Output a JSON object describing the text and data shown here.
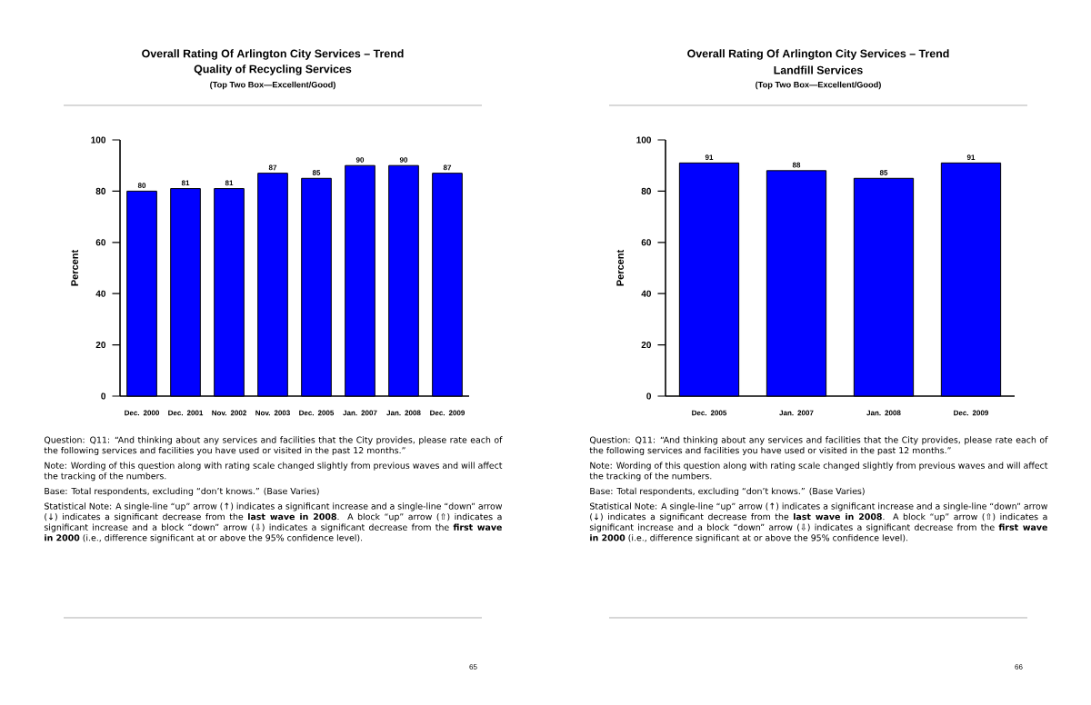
{
  "chart_data": [
    {
      "type": "bar",
      "title": "Overall Rating Of Arlington City Services – Trend",
      "subtitle": "Quality of Recycling Services",
      "ylabel": "Percent",
      "categories": [
        "Dec. 2000",
        "Dec. 2001",
        "Nov. 2002",
        "Nov. 2003",
        "Dec. 2005",
        "Jan. 2007",
        "Jan. 2008",
        "Dec. 2009"
      ],
      "values": [
        80,
        81,
        81,
        87,
        85,
        90,
        90,
        87
      ],
      "color": "#0000ff",
      "ylim": [
        0,
        100
      ],
      "yticks": [
        0,
        20,
        40,
        60,
        80,
        100
      ],
      "data_labels": true,
      "annotations": [
        "(Top Two Box—Excellent/Good)",
        "Question:  Q11: “And thinking about any services and facilities that the City provides, please rate each of the following services and facilities you have used or visited in the past 12 months.”",
        "Note: Wording of this question along with rating scale changed slightly from previous waves and will affect the tracking of the numbers.",
        "Base: Total respondents, excluding “don’t knows.” (Base Varies)",
        "Statistical Note:  A single-line “up” arrow (↑) indicates a significant increase and a single-line “down” arrow (↓) indicates a significant decrease from the **last wave in 2008**.  A block “up” arrow (⇧) indicates a significant increase and a block “down” arrow (⇩) indicates a significant decrease from the **first wave in 2000** (i.e., difference significant at or above the 95% confidence level).",
        "65"
      ]
    },
    {
      "type": "bar",
      "title": "Overall Rating Of Arlington City Services – Trend",
      "subtitle": "Landfill Services",
      "ylabel": "Percent",
      "categories": [
        "Dec. 2005",
        "Jan. 2007",
        "Jan. 2008",
        "Dec. 2009"
      ],
      "values": [
        91,
        88,
        85,
        91
      ],
      "color": "#0000ff",
      "ylim": [
        0,
        100
      ],
      "yticks": [
        0,
        20,
        40,
        60,
        80,
        100
      ],
      "data_labels": true,
      "annotations": [
        "(Top Two Box—Excellent/Good)",
        "Question:  Q11: “And thinking about any services and facilities that the City provides, please rate each of the following services and facilities you have used or visited in the past 12 months.”",
        "Note: Wording of this question along with rating scale changed slightly from previous waves and will affect the tracking of the numbers.",
        "Base: Total respondents, excluding “don’t knows.” (Base Varies)",
        "Statistical Note:  A single-line “up” arrow (↑) indicates a significant increase and a single-line “down” arrow (↓) indicates a significant decrease from the **last wave in 2008**.  A block “up” arrow (⇧) indicates a significant increase and a block “down” arrow (⇩) indicates a significant decrease from the **first wave in 2000** (i.e., difference significant at or above the 95% confidence level).",
        "66"
      ]
    }
  ]
}
